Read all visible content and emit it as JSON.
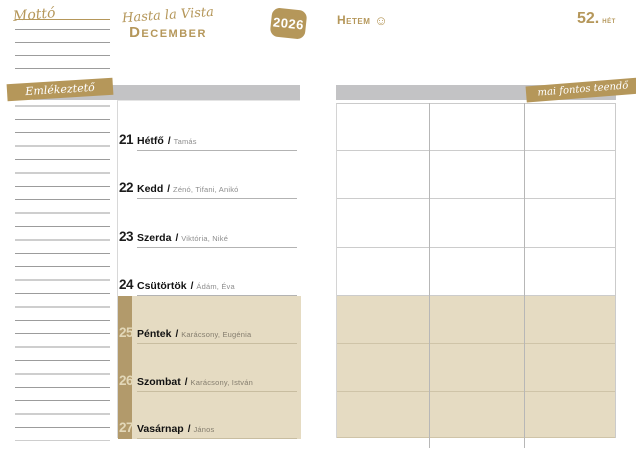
{
  "header": {
    "motto_label": "Mottó",
    "title_script": "Hasta la Vista",
    "month": "December",
    "year": "2026",
    "my_week_label": "Hetem",
    "week_number": "52.",
    "week_unit": "hét"
  },
  "icons": {
    "smiley": "☺"
  },
  "left_panel": {
    "reminder_ribbon": "Emlékeztető"
  },
  "right_panel": {
    "todo_ribbon": "mai fontos teendő"
  },
  "week": {
    "separator": "/",
    "days": [
      {
        "date": "21",
        "name": "Hétfő",
        "namedays": "Tamás",
        "holiday": false
      },
      {
        "date": "22",
        "name": "Kedd",
        "namedays": "Zénó, Tifani, Anikó",
        "holiday": false
      },
      {
        "date": "23",
        "name": "Szerda",
        "namedays": "Viktória, Niké",
        "holiday": false
      },
      {
        "date": "24",
        "name": "Csütörtök",
        "namedays": "Ádám, Éva",
        "holiday": false
      },
      {
        "date": "25",
        "name": "Péntek",
        "namedays": "Karácsony, Eugénia",
        "holiday": true
      },
      {
        "date": "26",
        "name": "Szombat",
        "namedays": "Karácsony, István",
        "holiday": true
      },
      {
        "date": "27",
        "name": "Vasárnap",
        "namedays": "János",
        "holiday": true
      }
    ]
  },
  "colors": {
    "gold": "#b5975a",
    "gold_strip": "#b29a6b",
    "holiday_beige": "#e5dbc2",
    "gray_bar": "#c3c3c5"
  }
}
